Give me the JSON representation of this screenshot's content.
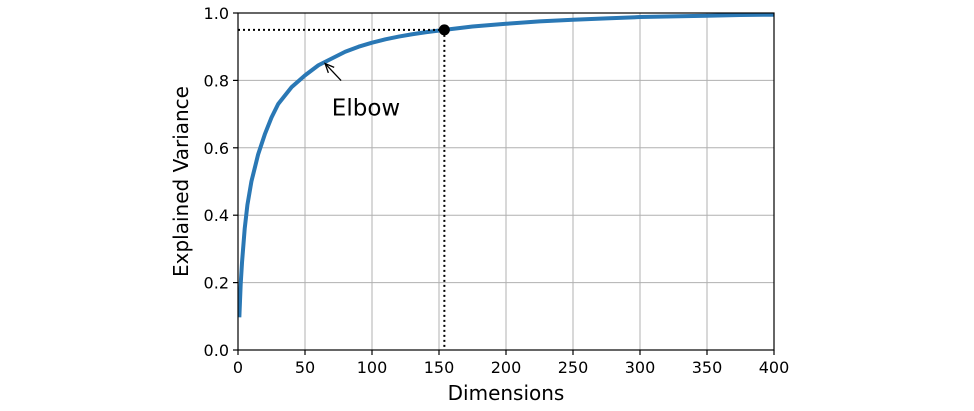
{
  "chart_data": {
    "type": "line",
    "title": "",
    "xlabel": "Dimensions",
    "ylabel": "Explained Variance",
    "xlim": [
      0,
      400
    ],
    "ylim": [
      0.0,
      1.0
    ],
    "xticks": [
      0,
      50,
      100,
      150,
      200,
      250,
      300,
      350,
      400
    ],
    "xtick_labels": [
      "0",
      "50",
      "100",
      "150",
      "200",
      "250",
      "300",
      "350",
      "400"
    ],
    "yticks": [
      0.0,
      0.2,
      0.4,
      0.6,
      0.8,
      1.0
    ],
    "ytick_labels": [
      "0.0",
      "0.2",
      "0.4",
      "0.6",
      "0.8",
      "1.0"
    ],
    "grid": true,
    "legend": "none",
    "colors": {
      "series": "#2a78b5",
      "grid": "#b0b0b0",
      "axes": "#000000",
      "marker": "#000000"
    },
    "series": [
      {
        "x": [
          1,
          2,
          3,
          5,
          7,
          10,
          15,
          20,
          25,
          30,
          40,
          50,
          60,
          70,
          80,
          90,
          100,
          110,
          120,
          130,
          140,
          154,
          175,
          200,
          225,
          250,
          275,
          300,
          325,
          350,
          375,
          400
        ],
        "y": [
          0.097,
          0.195,
          0.26,
          0.36,
          0.43,
          0.5,
          0.58,
          0.64,
          0.69,
          0.73,
          0.78,
          0.815,
          0.845,
          0.865,
          0.885,
          0.9,
          0.912,
          0.922,
          0.93,
          0.937,
          0.943,
          0.95,
          0.96,
          0.968,
          0.975,
          0.98,
          0.984,
          0.988,
          0.99,
          0.992,
          0.994,
          0.995
        ]
      }
    ],
    "highlight_point": {
      "x": 154,
      "y": 0.95
    },
    "annotations": [
      {
        "text": "Elbow",
        "arrow_to": {
          "x": 65,
          "y": 0.85
        },
        "text_at": {
          "x": 70,
          "y": 0.72
        }
      }
    ]
  }
}
